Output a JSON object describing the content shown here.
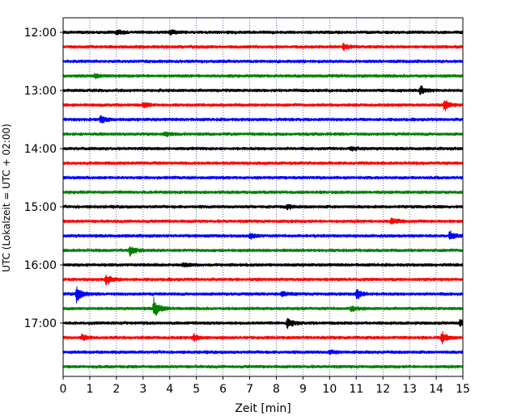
{
  "chart_data": {
    "type": "line",
    "title": "",
    "xlabel": "Zeit  [min]",
    "ylabel": "UTC (Lokalzeit = UTC + 02:00)",
    "xlim": [
      0,
      15
    ],
    "x_ticks": [
      0,
      1,
      2,
      3,
      4,
      5,
      6,
      7,
      8,
      9,
      10,
      11,
      12,
      13,
      14,
      15
    ],
    "x_tick_labels": [
      "0",
      "1",
      "2",
      "3",
      "4",
      "5",
      "6",
      "7",
      "8",
      "9",
      "10",
      "11",
      "12",
      "13",
      "14",
      "15"
    ],
    "vertical_gridlines": "dotted, every minute",
    "start_time": "12:00",
    "trace_interval_minutes": 15,
    "trace_count": 24,
    "y_tick_labels": [
      "12:00",
      "13:00",
      "14:00",
      "15:00",
      "16:00",
      "17:00"
    ],
    "color_cycle": [
      "#000000",
      "#ff0000",
      "#0000ff",
      "#008000"
    ],
    "events": [
      {
        "trace": 0,
        "minute": 2.0,
        "amp": 0.8
      },
      {
        "trace": 0,
        "minute": 4.0,
        "amp": 0.7
      },
      {
        "trace": 1,
        "minute": 10.5,
        "amp": 0.9
      },
      {
        "trace": 3,
        "minute": 1.2,
        "amp": 0.8
      },
      {
        "trace": 4,
        "minute": 13.4,
        "amp": 1.5
      },
      {
        "trace": 5,
        "minute": 3.0,
        "amp": 0.9
      },
      {
        "trace": 5,
        "minute": 14.3,
        "amp": 1.8
      },
      {
        "trace": 6,
        "minute": 1.4,
        "amp": 1.5
      },
      {
        "trace": 7,
        "minute": 3.8,
        "amp": 0.7
      },
      {
        "trace": 8,
        "minute": 10.8,
        "amp": 0.7
      },
      {
        "trace": 12,
        "minute": 8.4,
        "amp": 0.8
      },
      {
        "trace": 13,
        "minute": 12.3,
        "amp": 1.2
      },
      {
        "trace": 14,
        "minute": 7.0,
        "amp": 0.9
      },
      {
        "trace": 14,
        "minute": 14.5,
        "amp": 1.4
      },
      {
        "trace": 15,
        "minute": 2.5,
        "amp": 1.6
      },
      {
        "trace": 16,
        "minute": 4.5,
        "amp": 0.7
      },
      {
        "trace": 17,
        "minute": 1.6,
        "amp": 1.8
      },
      {
        "trace": 18,
        "minute": 0.5,
        "amp": 2.6
      },
      {
        "trace": 18,
        "minute": 11.0,
        "amp": 1.8
      },
      {
        "trace": 18,
        "minute": 8.2,
        "amp": 1.0
      },
      {
        "trace": 19,
        "minute": 3.4,
        "amp": 3.0
      },
      {
        "trace": 19,
        "minute": 10.8,
        "amp": 0.9
      },
      {
        "trace": 20,
        "minute": 8.4,
        "amp": 1.8
      },
      {
        "trace": 20,
        "minute": 14.9,
        "amp": 1.4
      },
      {
        "trace": 21,
        "minute": 0.7,
        "amp": 1.1
      },
      {
        "trace": 21,
        "minute": 4.9,
        "amp": 1.2
      },
      {
        "trace": 21,
        "minute": 14.2,
        "amp": 1.8
      },
      {
        "trace": 22,
        "minute": 10.0,
        "amp": 0.7
      }
    ]
  }
}
